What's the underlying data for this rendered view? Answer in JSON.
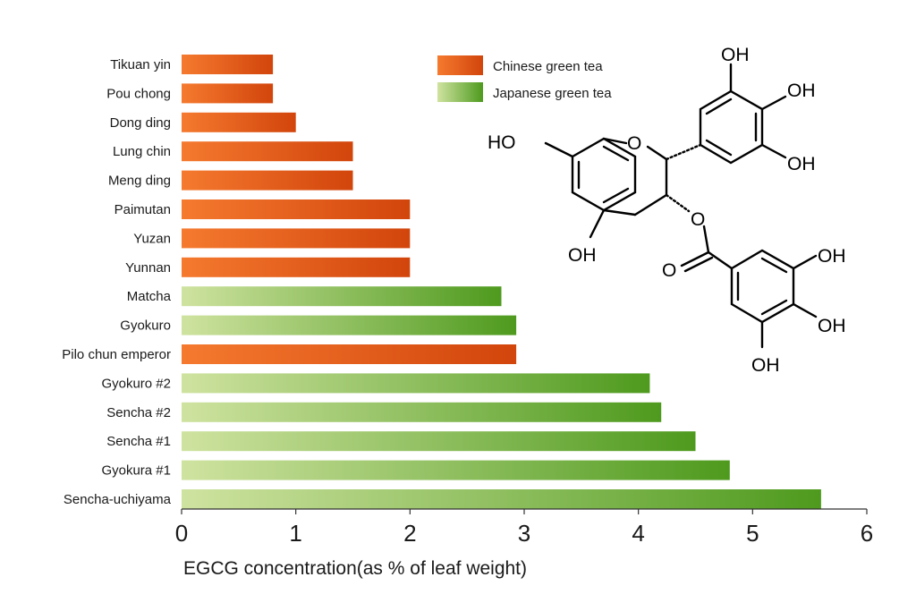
{
  "chart_data": {
    "type": "bar",
    "orientation": "horizontal",
    "title": "",
    "xlabel": "EGCG concentration(as % of leaf weight)",
    "ylabel": "",
    "xlim": [
      0,
      6
    ],
    "xticks": [
      "0",
      "1",
      "2",
      "3",
      "4",
      "5",
      "6"
    ],
    "grid": false,
    "legend_position": "top-center",
    "legend": [
      {
        "name": "Chinese green tea",
        "key": "chinese",
        "color_dark": "#d2450c",
        "color_light": "#f57a2f"
      },
      {
        "name": "Japanese green tea",
        "key": "japanese",
        "color_dark": "#4e9a1e",
        "color_light": "#cfe3a0"
      }
    ],
    "categories": [
      "Tikuan yin",
      "Pou chong",
      "Dong ding",
      "Lung chin",
      "Meng ding",
      "Paimutan",
      "Yuzan",
      "Yunnan",
      "Matcha",
      "Gyokuro",
      "Pilo chun emperor",
      "Gyokuro #2",
      "Sencha #2",
      "Sencha #1",
      "Gyokura #1",
      "Sencha-uchiyama"
    ],
    "values": [
      0.8,
      0.8,
      1.0,
      1.5,
      1.5,
      2.0,
      2.0,
      2.0,
      2.8,
      2.93,
      2.93,
      4.1,
      4.2,
      4.5,
      4.8,
      5.6
    ],
    "groups": [
      "chinese",
      "chinese",
      "chinese",
      "chinese",
      "chinese",
      "chinese",
      "chinese",
      "chinese",
      "japanese",
      "japanese",
      "chinese",
      "japanese",
      "japanese",
      "japanese",
      "japanese",
      "japanese"
    ]
  },
  "molecule": {
    "atom_labels": [
      "HO",
      "O",
      "OH",
      "OH",
      "OH",
      "OH",
      "O",
      "O",
      "OH",
      "OH",
      "OH"
    ]
  }
}
